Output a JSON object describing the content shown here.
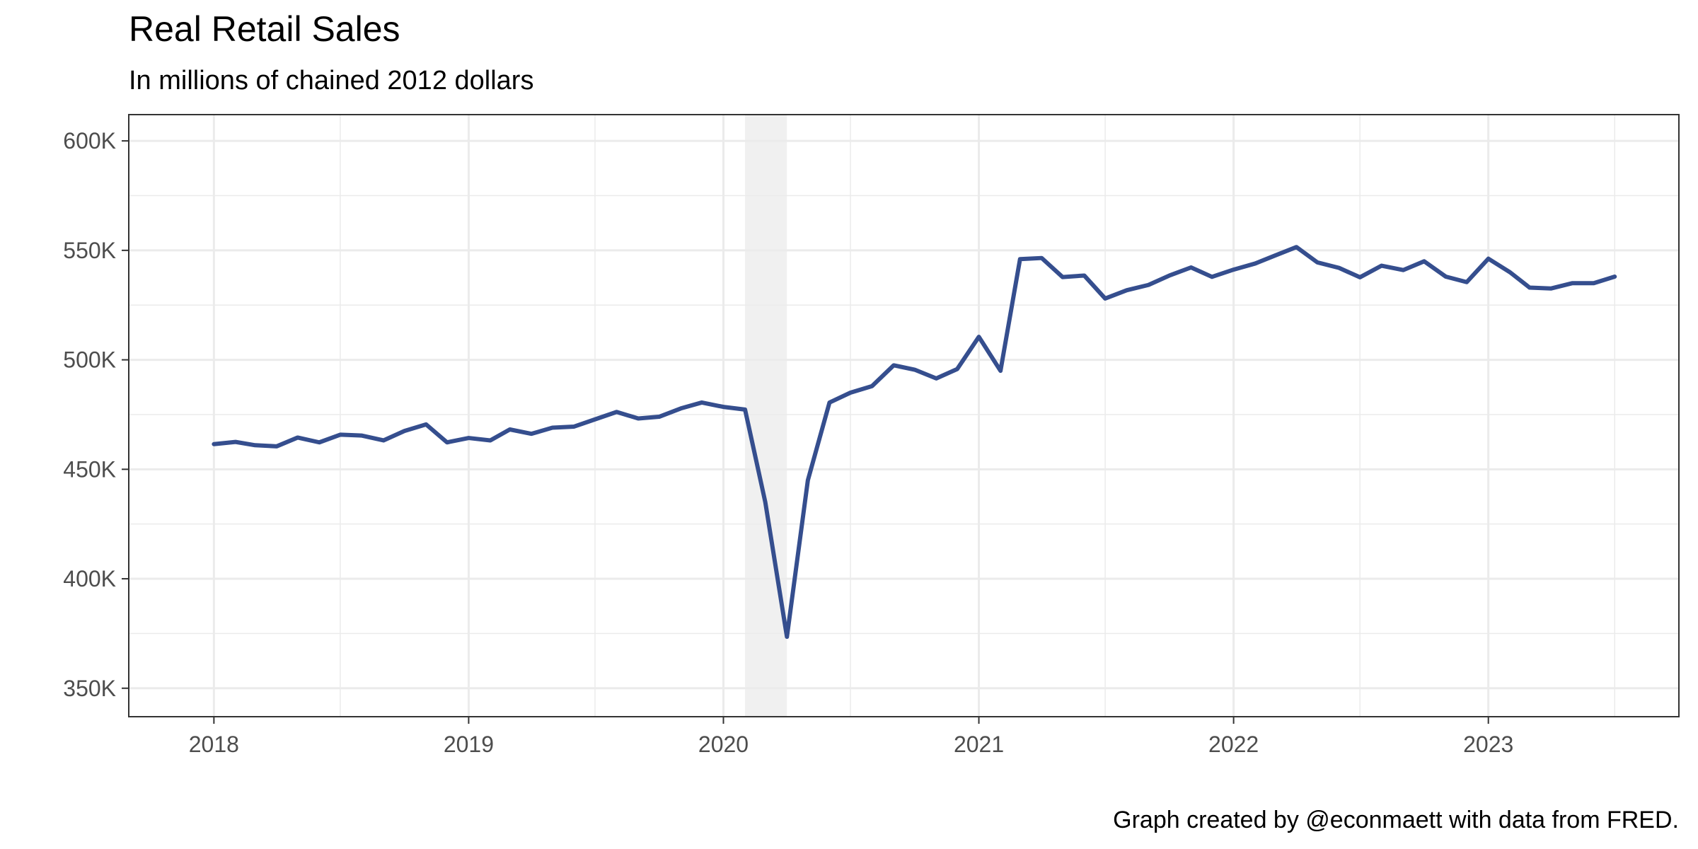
{
  "chart_data": {
    "type": "line",
    "title": "Real Retail Sales",
    "subtitle": "In millions of chained 2012 dollars",
    "caption": "Graph created by @econmaett with data from FRED.",
    "xlabel": "",
    "ylabel": "",
    "x_ticks": [
      {
        "value": "2018-01-01",
        "label": "2018"
      },
      {
        "value": "2019-01-01",
        "label": "2019"
      },
      {
        "value": "2020-01-01",
        "label": "2020"
      },
      {
        "value": "2021-01-01",
        "label": "2021"
      },
      {
        "value": "2022-01-01",
        "label": "2022"
      },
      {
        "value": "2023-01-01",
        "label": "2023"
      }
    ],
    "y_ticks": [
      {
        "value": 350000,
        "label": "350K"
      },
      {
        "value": 400000,
        "label": "400K"
      },
      {
        "value": 450000,
        "label": "450K"
      },
      {
        "value": 500000,
        "label": "500K"
      },
      {
        "value": 550000,
        "label": "550K"
      },
      {
        "value": 600000,
        "label": "600K"
      }
    ],
    "xlim": [
      "2017-09-01",
      "2023-10-01"
    ],
    "ylim": [
      337000,
      612000
    ],
    "grid": true,
    "recession": {
      "start": "2020-02-01",
      "end": "2020-04-01",
      "color": "#f0f0f0"
    },
    "series": [
      {
        "color": "#354e8e",
        "x": [
          "2018-01-01",
          "2018-02-01",
          "2018-03-01",
          "2018-04-01",
          "2018-05-01",
          "2018-06-01",
          "2018-07-01",
          "2018-08-01",
          "2018-09-01",
          "2018-10-01",
          "2018-11-01",
          "2018-12-01",
          "2019-01-01",
          "2019-02-01",
          "2019-03-01",
          "2019-04-01",
          "2019-05-01",
          "2019-06-01",
          "2019-07-01",
          "2019-08-01",
          "2019-09-01",
          "2019-10-01",
          "2019-11-01",
          "2019-12-01",
          "2020-01-01",
          "2020-02-01",
          "2020-03-01",
          "2020-04-01",
          "2020-05-01",
          "2020-06-01",
          "2020-07-01",
          "2020-08-01",
          "2020-09-01",
          "2020-10-01",
          "2020-11-01",
          "2020-12-01",
          "2021-01-01",
          "2021-02-01",
          "2021-03-01",
          "2021-04-01",
          "2021-05-01",
          "2021-06-01",
          "2021-07-01",
          "2021-08-01",
          "2021-09-01",
          "2021-10-01",
          "2021-11-01",
          "2021-12-01",
          "2022-01-01",
          "2022-02-01",
          "2022-03-01",
          "2022-04-01",
          "2022-05-01",
          "2022-06-01",
          "2022-07-01",
          "2022-08-01",
          "2022-09-01",
          "2022-10-01",
          "2022-11-01",
          "2022-12-01",
          "2023-01-01",
          "2023-02-01",
          "2023-03-01",
          "2023-04-01",
          "2023-05-01",
          "2023-06-01",
          "2023-07-01"
        ],
        "y": [
          461500,
          462500,
          461000,
          460500,
          464500,
          462300,
          465800,
          465400,
          463200,
          467500,
          470500,
          462300,
          464300,
          463200,
          468200,
          466200,
          469000,
          469500,
          472800,
          476200,
          473200,
          474000,
          477800,
          480500,
          478500,
          477300,
          435000,
          373500,
          445000,
          480500,
          485000,
          488000,
          497500,
          495500,
          491500,
          495800,
          510500,
          495000,
          546000,
          546500,
          537800,
          538500,
          528000,
          531800,
          534200,
          538500,
          542200,
          537900,
          541200,
          544000,
          547600,
          551500,
          544500,
          542000,
          537700,
          543000,
          541000,
          545000,
          538000,
          535500,
          546200,
          540000,
          533000,
          532600,
          535000,
          535000,
          538000
        ]
      }
    ]
  }
}
